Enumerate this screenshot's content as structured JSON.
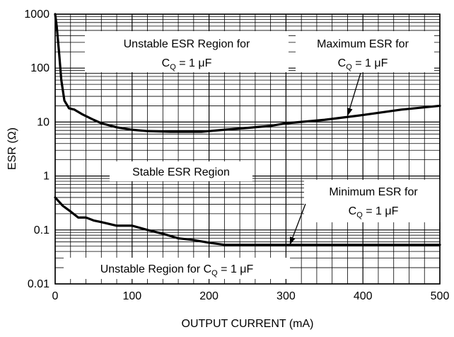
{
  "chart_data": {
    "type": "line",
    "title": "",
    "xlabel": "OUTPUT CURRENT (mA)",
    "ylabel": "ESR (Ω)",
    "xlim": [
      0,
      500
    ],
    "ylim": [
      0.01,
      1000
    ],
    "y_scale": "log",
    "grid": true,
    "x_ticks": [
      {
        "value": 0,
        "label": "0"
      },
      {
        "value": 100,
        "label": "100"
      },
      {
        "value": 200,
        "label": "200"
      },
      {
        "value": 300,
        "label": "300"
      },
      {
        "value": 400,
        "label": "400"
      },
      {
        "value": 500,
        "label": "500"
      }
    ],
    "y_ticks": [
      {
        "value": 0.01,
        "label": "0.01"
      },
      {
        "value": 0.1,
        "label": "0.1"
      },
      {
        "value": 1,
        "label": "1"
      },
      {
        "value": 10,
        "label": "10"
      },
      {
        "value": 100,
        "label": "100"
      },
      {
        "value": 1000,
        "label": "1000"
      }
    ],
    "series": [
      {
        "x": [
          0,
          2,
          5,
          8,
          12,
          18,
          25,
          35,
          50,
          60,
          80,
          100,
          120,
          150,
          180,
          190,
          200,
          220,
          250,
          280,
          300,
          350,
          400,
          450,
          500
        ],
        "y": [
          1000,
          600,
          200,
          60,
          25,
          18,
          17,
          14,
          11,
          9.5,
          8,
          7.2,
          6.8,
          6.6,
          6.6,
          6.6,
          6.8,
          7.2,
          7.8,
          8.5,
          9.5,
          11,
          13.5,
          17,
          20
        ]
      },
      {
        "x": [
          0,
          10,
          20,
          30,
          40,
          50,
          60,
          80,
          100,
          120,
          140,
          160,
          180,
          200,
          220,
          250,
          300,
          350,
          400,
          450,
          500
        ],
        "y": [
          0.4,
          0.28,
          0.22,
          0.17,
          0.17,
          0.15,
          0.14,
          0.12,
          0.12,
          0.1,
          0.085,
          0.07,
          0.065,
          0.058,
          0.053,
          0.053,
          0.053,
          0.053,
          0.053,
          0.053,
          0.053
        ]
      }
    ],
    "annotations": {
      "unstable_esr": {
        "line1": "Unstable ESR Region for",
        "c": "C",
        "sub": "Q",
        "rest": " = 1 μF"
      },
      "max_esr": {
        "line1": "Maximum ESR for",
        "c": "C",
        "sub": "Q",
        "rest": " = 1 μF",
        "arrow_x": 380,
        "arrow_y": 13
      },
      "stable_esr": {
        "line1": "Stable ESR Region"
      },
      "min_esr": {
        "line1": "Minimum ESR for",
        "c": "C",
        "sub": "Q",
        "rest": " = 1 μF",
        "arrow_x": 305,
        "arrow_y": 0.053
      },
      "unstable_low": {
        "prefix": "Unstable Region for ",
        "c": "C",
        "sub": "Q",
        "rest": " = 1 μF"
      }
    }
  }
}
